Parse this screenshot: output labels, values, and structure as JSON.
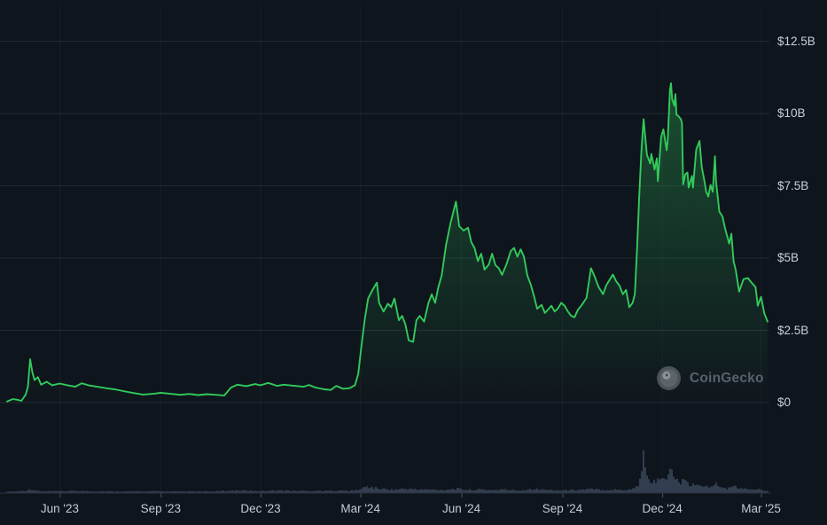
{
  "colors": {
    "background": "#0f151d",
    "line_green": "#32ca5b",
    "area_fill_top": "rgba(50,202,91,0.32)",
    "area_fill_bottom": "rgba(50,202,91,0)",
    "grid_horizontal": "rgba(140,160,190,0.14)",
    "grid_vertical": "rgba(140,160,190,0.07)",
    "volume_bar": "#46536a",
    "axis_line": "#27303d",
    "tick_mark": "#4a5462",
    "axis_text": "#c7cfda",
    "watermark_text": "#57616e"
  },
  "chart_data": {
    "type": "line",
    "subtype": "area-line-with-volume-bars",
    "title": "",
    "value_unit": "USD billions",
    "watermark": "CoinGecko",
    "grid": true,
    "y_axis": {
      "side": "right",
      "ylim": [
        0,
        12.5
      ],
      "ticks": [
        {
          "label": "$12.5B",
          "value": 12.5
        },
        {
          "label": "$10B",
          "value": 10
        },
        {
          "label": "$7.5B",
          "value": 7.5
        },
        {
          "label": "$5B",
          "value": 5
        },
        {
          "label": "$2.5B",
          "value": 2.5
        },
        {
          "label": "$0",
          "value": 0
        }
      ]
    },
    "x_axis": {
      "range": [
        "2023-04-14",
        "2025-03-07"
      ],
      "ticks": [
        {
          "label": "Jun '23",
          "date": "2023-06-01"
        },
        {
          "label": "Sep '23",
          "date": "2023-09-01"
        },
        {
          "label": "Dec '23",
          "date": "2023-12-01"
        },
        {
          "label": "Mar '24",
          "date": "2024-03-01"
        },
        {
          "label": "Jun '24",
          "date": "2024-06-01"
        },
        {
          "label": "Sep '24",
          "date": "2024-09-01"
        },
        {
          "label": "Dec '24",
          "date": "2024-12-01"
        },
        {
          "label": "Mar '25",
          "date": "2025-03-01"
        }
      ]
    },
    "series": [
      {
        "name": "value_usd_b",
        "color": "#32ca5b",
        "points": [
          [
            "2023-04-14",
            0.04
          ],
          [
            "2023-04-19",
            0.12
          ],
          [
            "2023-04-23",
            0.1
          ],
          [
            "2023-04-27",
            0.06
          ],
          [
            "2023-05-01",
            0.28
          ],
          [
            "2023-05-03",
            0.55
          ],
          [
            "2023-05-05",
            1.5
          ],
          [
            "2023-05-07",
            1.05
          ],
          [
            "2023-05-09",
            0.78
          ],
          [
            "2023-05-12",
            0.88
          ],
          [
            "2023-05-15",
            0.62
          ],
          [
            "2023-05-20",
            0.72
          ],
          [
            "2023-05-25",
            0.6
          ],
          [
            "2023-06-01",
            0.66
          ],
          [
            "2023-06-08",
            0.6
          ],
          [
            "2023-06-15",
            0.55
          ],
          [
            "2023-06-21",
            0.67
          ],
          [
            "2023-06-27",
            0.6
          ],
          [
            "2023-07-05",
            0.55
          ],
          [
            "2023-07-13",
            0.5
          ],
          [
            "2023-07-21",
            0.46
          ],
          [
            "2023-07-29",
            0.4
          ],
          [
            "2023-08-06",
            0.34
          ],
          [
            "2023-08-16",
            0.28
          ],
          [
            "2023-08-26",
            0.31
          ],
          [
            "2023-09-01",
            0.34
          ],
          [
            "2023-09-11",
            0.3
          ],
          [
            "2023-09-19",
            0.27
          ],
          [
            "2023-09-27",
            0.3
          ],
          [
            "2023-10-05",
            0.26
          ],
          [
            "2023-10-13",
            0.29
          ],
          [
            "2023-10-21",
            0.27
          ],
          [
            "2023-10-29",
            0.25
          ],
          [
            "2023-11-04",
            0.52
          ],
          [
            "2023-11-10",
            0.62
          ],
          [
            "2023-11-18",
            0.57
          ],
          [
            "2023-11-26",
            0.64
          ],
          [
            "2023-12-01",
            0.6
          ],
          [
            "2023-12-08",
            0.68
          ],
          [
            "2023-12-16",
            0.58
          ],
          [
            "2023-12-22",
            0.62
          ],
          [
            "2024-01-01",
            0.58
          ],
          [
            "2024-01-09",
            0.55
          ],
          [
            "2024-01-14",
            0.61
          ],
          [
            "2024-01-20",
            0.52
          ],
          [
            "2024-01-28",
            0.46
          ],
          [
            "2024-02-03",
            0.44
          ],
          [
            "2024-02-08",
            0.58
          ],
          [
            "2024-02-14",
            0.48
          ],
          [
            "2024-02-20",
            0.5
          ],
          [
            "2024-02-25",
            0.6
          ],
          [
            "2024-02-28",
            1.0
          ],
          [
            "2024-03-02",
            2.0
          ],
          [
            "2024-03-05",
            2.9
          ],
          [
            "2024-03-08",
            3.6
          ],
          [
            "2024-03-12",
            3.9
          ],
          [
            "2024-03-16",
            4.15
          ],
          [
            "2024-03-18",
            3.45
          ],
          [
            "2024-03-22",
            3.15
          ],
          [
            "2024-03-26",
            3.42
          ],
          [
            "2024-03-29",
            3.3
          ],
          [
            "2024-04-01",
            3.6
          ],
          [
            "2024-04-05",
            2.85
          ],
          [
            "2024-04-08",
            3.0
          ],
          [
            "2024-04-11",
            2.7
          ],
          [
            "2024-04-14",
            2.15
          ],
          [
            "2024-04-18",
            2.1
          ],
          [
            "2024-04-21",
            2.85
          ],
          [
            "2024-04-24",
            3.0
          ],
          [
            "2024-04-28",
            2.8
          ],
          [
            "2024-05-02",
            3.45
          ],
          [
            "2024-05-05",
            3.75
          ],
          [
            "2024-05-08",
            3.45
          ],
          [
            "2024-05-11",
            4.0
          ],
          [
            "2024-05-14",
            4.4
          ],
          [
            "2024-05-18",
            5.45
          ],
          [
            "2024-05-22",
            6.2
          ],
          [
            "2024-05-27",
            6.95
          ],
          [
            "2024-05-30",
            6.1
          ],
          [
            "2024-06-03",
            5.95
          ],
          [
            "2024-06-07",
            6.05
          ],
          [
            "2024-06-10",
            5.55
          ],
          [
            "2024-06-13",
            5.35
          ],
          [
            "2024-06-16",
            4.9
          ],
          [
            "2024-06-19",
            5.15
          ],
          [
            "2024-06-22",
            4.6
          ],
          [
            "2024-06-26",
            4.78
          ],
          [
            "2024-06-29",
            5.15
          ],
          [
            "2024-07-02",
            4.75
          ],
          [
            "2024-07-05",
            4.65
          ],
          [
            "2024-07-08",
            4.42
          ],
          [
            "2024-07-12",
            4.78
          ],
          [
            "2024-07-16",
            5.25
          ],
          [
            "2024-07-19",
            5.35
          ],
          [
            "2024-07-22",
            5.05
          ],
          [
            "2024-07-25",
            5.3
          ],
          [
            "2024-07-28",
            5.05
          ],
          [
            "2024-07-31",
            4.4
          ],
          [
            "2024-08-03",
            4.1
          ],
          [
            "2024-08-06",
            3.7
          ],
          [
            "2024-08-09",
            3.25
          ],
          [
            "2024-08-13",
            3.38
          ],
          [
            "2024-08-16",
            3.1
          ],
          [
            "2024-08-19",
            3.22
          ],
          [
            "2024-08-22",
            3.35
          ],
          [
            "2024-08-25",
            3.15
          ],
          [
            "2024-08-28",
            3.26
          ],
          [
            "2024-08-31",
            3.45
          ],
          [
            "2024-09-03",
            3.35
          ],
          [
            "2024-09-06",
            3.15
          ],
          [
            "2024-09-09",
            3.0
          ],
          [
            "2024-09-12",
            2.95
          ],
          [
            "2024-09-15",
            3.2
          ],
          [
            "2024-09-19",
            3.4
          ],
          [
            "2024-09-23",
            3.62
          ],
          [
            "2024-09-27",
            4.65
          ],
          [
            "2024-09-30",
            4.4
          ],
          [
            "2024-10-04",
            4.0
          ],
          [
            "2024-10-08",
            3.75
          ],
          [
            "2024-10-11",
            4.06
          ],
          [
            "2024-10-17",
            4.43
          ],
          [
            "2024-10-20",
            4.2
          ],
          [
            "2024-10-23",
            4.05
          ],
          [
            "2024-10-26",
            3.75
          ],
          [
            "2024-10-29",
            3.9
          ],
          [
            "2024-11-01",
            3.3
          ],
          [
            "2024-11-04",
            3.45
          ],
          [
            "2024-11-06",
            3.75
          ],
          [
            "2024-11-08",
            5.3
          ],
          [
            "2024-11-10",
            7.1
          ],
          [
            "2024-11-12",
            8.7
          ],
          [
            "2024-11-13",
            9.3
          ],
          [
            "2024-11-14",
            9.8
          ],
          [
            "2024-11-17",
            8.58
          ],
          [
            "2024-11-20",
            8.27
          ],
          [
            "2024-11-21",
            8.6
          ],
          [
            "2024-11-24",
            8.06
          ],
          [
            "2024-11-26",
            8.45
          ],
          [
            "2024-11-27",
            7.66
          ],
          [
            "2024-11-30",
            9.2
          ],
          [
            "2024-12-02",
            9.45
          ],
          [
            "2024-12-05",
            8.73
          ],
          [
            "2024-12-06",
            9.07
          ],
          [
            "2024-12-08",
            10.8
          ],
          [
            "2024-12-09",
            11.05
          ],
          [
            "2024-12-10",
            10.5
          ],
          [
            "2024-12-12",
            10.27
          ],
          [
            "2024-12-13",
            10.67
          ],
          [
            "2024-12-14",
            9.96
          ],
          [
            "2024-12-16",
            9.9
          ],
          [
            "2024-12-18",
            9.8
          ],
          [
            "2024-12-19",
            9.66
          ],
          [
            "2024-12-20",
            7.55
          ],
          [
            "2024-12-22",
            7.9
          ],
          [
            "2024-12-24",
            7.96
          ],
          [
            "2024-12-25",
            7.44
          ],
          [
            "2024-12-28",
            7.84
          ],
          [
            "2024-12-29",
            7.44
          ],
          [
            "2025-01-01",
            8.76
          ],
          [
            "2025-01-04",
            9.05
          ],
          [
            "2025-01-06",
            8.15
          ],
          [
            "2025-01-08",
            7.75
          ],
          [
            "2025-01-10",
            7.3
          ],
          [
            "2025-01-12",
            7.13
          ],
          [
            "2025-01-14",
            7.53
          ],
          [
            "2025-01-16",
            7.29
          ],
          [
            "2025-01-18",
            8.52
          ],
          [
            "2025-01-19",
            7.66
          ],
          [
            "2025-01-22",
            6.61
          ],
          [
            "2025-01-25",
            6.43
          ],
          [
            "2025-01-27",
            6.06
          ],
          [
            "2025-01-31",
            5.5
          ],
          [
            "2025-02-02",
            5.84
          ],
          [
            "2025-02-04",
            4.89
          ],
          [
            "2025-02-06",
            4.58
          ],
          [
            "2025-02-09",
            3.84
          ],
          [
            "2025-02-13",
            4.27
          ],
          [
            "2025-02-17",
            4.31
          ],
          [
            "2025-02-21",
            4.12
          ],
          [
            "2025-02-24",
            4.0
          ],
          [
            "2025-02-26",
            3.35
          ],
          [
            "2025-03-01",
            3.66
          ],
          [
            "2025-03-04",
            3.08
          ],
          [
            "2025-03-07",
            2.8
          ]
        ]
      }
    ],
    "volume_bars": {
      "color": "#46536a",
      "scale": "relative, 1.0 = tallest bar shown",
      "points": [
        [
          "2023-04-14",
          0.02
        ],
        [
          "2023-04-25",
          0.03
        ],
        [
          "2023-05-03",
          0.05
        ],
        [
          "2023-05-05",
          0.09
        ],
        [
          "2023-05-08",
          0.05
        ],
        [
          "2023-05-15",
          0.03
        ],
        [
          "2023-06-01",
          0.03
        ],
        [
          "2023-06-15",
          0.04
        ],
        [
          "2023-07-01",
          0.03
        ],
        [
          "2023-07-15",
          0.03
        ],
        [
          "2023-08-01",
          0.025
        ],
        [
          "2023-08-15",
          0.03
        ],
        [
          "2023-09-01",
          0.03
        ],
        [
          "2023-09-15",
          0.025
        ],
        [
          "2023-10-01",
          0.03
        ],
        [
          "2023-10-15",
          0.025
        ],
        [
          "2023-11-01",
          0.04
        ],
        [
          "2023-11-10",
          0.05
        ],
        [
          "2023-11-20",
          0.04
        ],
        [
          "2023-12-01",
          0.04
        ],
        [
          "2023-12-15",
          0.05
        ],
        [
          "2024-01-01",
          0.04
        ],
        [
          "2024-01-15",
          0.04
        ],
        [
          "2024-02-01",
          0.04
        ],
        [
          "2024-02-10",
          0.05
        ],
        [
          "2024-02-20",
          0.04
        ],
        [
          "2024-03-01",
          0.07
        ],
        [
          "2024-03-06",
          0.14
        ],
        [
          "2024-03-12",
          0.12
        ],
        [
          "2024-03-16",
          0.1
        ],
        [
          "2024-03-22",
          0.08
        ],
        [
          "2024-04-01",
          0.07
        ],
        [
          "2024-04-13",
          0.09
        ],
        [
          "2024-04-21",
          0.07
        ],
        [
          "2024-05-02",
          0.07
        ],
        [
          "2024-05-13",
          0.06
        ],
        [
          "2024-05-23",
          0.08
        ],
        [
          "2024-05-27",
          0.09
        ],
        [
          "2024-06-03",
          0.07
        ],
        [
          "2024-06-10",
          0.06
        ],
        [
          "2024-06-20",
          0.07
        ],
        [
          "2024-07-01",
          0.06
        ],
        [
          "2024-07-08",
          0.07
        ],
        [
          "2024-07-16",
          0.06
        ],
        [
          "2024-07-25",
          0.05
        ],
        [
          "2024-08-05",
          0.09
        ],
        [
          "2024-08-13",
          0.07
        ],
        [
          "2024-08-20",
          0.06
        ],
        [
          "2024-09-01",
          0.05
        ],
        [
          "2024-09-10",
          0.06
        ],
        [
          "2024-09-27",
          0.08
        ],
        [
          "2024-10-08",
          0.06
        ],
        [
          "2024-10-17",
          0.07
        ],
        [
          "2024-10-29",
          0.06
        ],
        [
          "2024-11-06",
          0.1
        ],
        [
          "2024-11-10",
          0.22
        ],
        [
          "2024-11-12",
          0.4
        ],
        [
          "2024-11-14",
          1.0
        ],
        [
          "2024-11-16",
          0.45
        ],
        [
          "2024-11-19",
          0.3
        ],
        [
          "2024-11-22",
          0.27
        ],
        [
          "2024-11-25",
          0.22
        ],
        [
          "2024-11-28",
          0.3
        ],
        [
          "2024-12-02",
          0.34
        ],
        [
          "2024-12-05",
          0.3
        ],
        [
          "2024-12-09",
          0.62
        ],
        [
          "2024-12-11",
          0.38
        ],
        [
          "2024-12-14",
          0.27
        ],
        [
          "2024-12-17",
          0.22
        ],
        [
          "2024-12-20",
          0.34
        ],
        [
          "2024-12-24",
          0.2
        ],
        [
          "2024-12-28",
          0.17
        ],
        [
          "2025-01-01",
          0.15
        ],
        [
          "2025-01-05",
          0.2
        ],
        [
          "2025-01-09",
          0.14
        ],
        [
          "2025-01-13",
          0.12
        ],
        [
          "2025-01-18",
          0.22
        ],
        [
          "2025-01-21",
          0.13
        ],
        [
          "2025-01-25",
          0.11
        ],
        [
          "2025-02-01",
          0.1
        ],
        [
          "2025-02-04",
          0.15
        ],
        [
          "2025-02-09",
          0.11
        ],
        [
          "2025-02-14",
          0.08
        ],
        [
          "2025-02-20",
          0.07
        ],
        [
          "2025-02-25",
          0.08
        ],
        [
          "2025-03-01",
          0.06
        ],
        [
          "2025-03-07",
          0.05
        ]
      ]
    }
  }
}
